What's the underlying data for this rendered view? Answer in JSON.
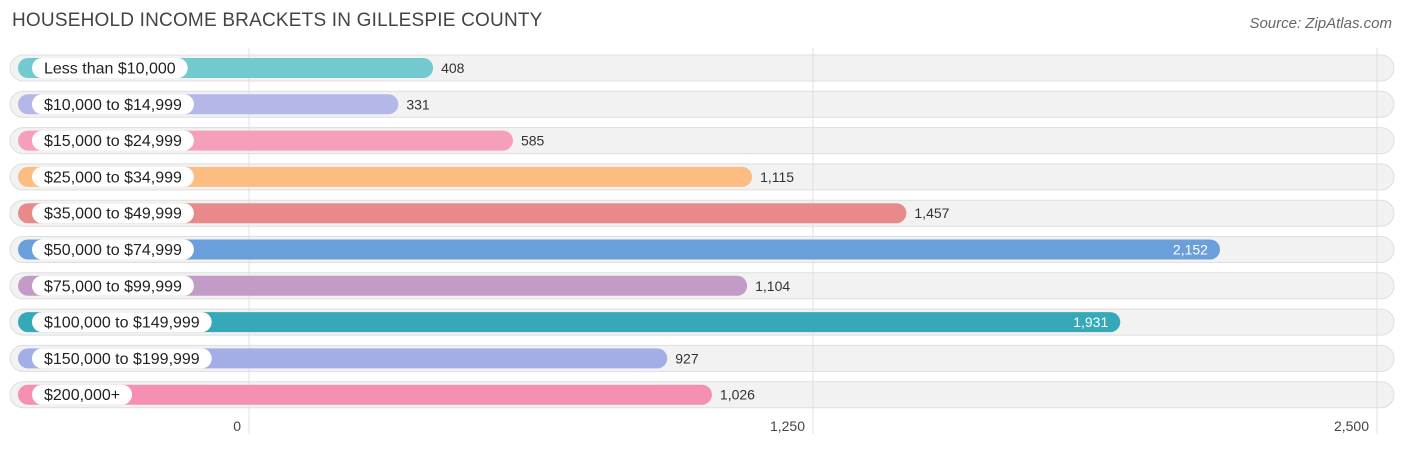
{
  "header": {
    "title": "HOUSEHOLD INCOME BRACKETS IN GILLESPIE COUNTY",
    "source": "Source: ZipAtlas.com"
  },
  "chart_data": {
    "type": "bar",
    "orientation": "horizontal",
    "title": "HOUSEHOLD INCOME BRACKETS IN GILLESPIE COUNTY",
    "categories": [
      "Less than $10,000",
      "$10,000 to $14,999",
      "$15,000 to $24,999",
      "$25,000 to $34,999",
      "$35,000 to $49,999",
      "$50,000 to $74,999",
      "$75,000 to $99,999",
      "$100,000 to $149,999",
      "$150,000 to $199,999",
      "$200,000+"
    ],
    "values": [
      408,
      331,
      585,
      1115,
      1457,
      2152,
      1104,
      1931,
      927,
      1026
    ],
    "value_labels": [
      "408",
      "331",
      "585",
      "1,115",
      "1,457",
      "2,152",
      "1,104",
      "1,931",
      "927",
      "1,026"
    ],
    "colors": [
      "#72c9cf",
      "#b4b8e8",
      "#f59fba",
      "#fbbd82",
      "#e8898a",
      "#6a9fdc",
      "#c39bc7",
      "#35a9b8",
      "#a4aee6",
      "#f590b3"
    ],
    "xlim": [
      0,
      2500
    ],
    "xticks": [
      0,
      1250,
      2500
    ],
    "xtick_labels": [
      "0",
      "1,250",
      "2,500"
    ],
    "grid": true
  }
}
